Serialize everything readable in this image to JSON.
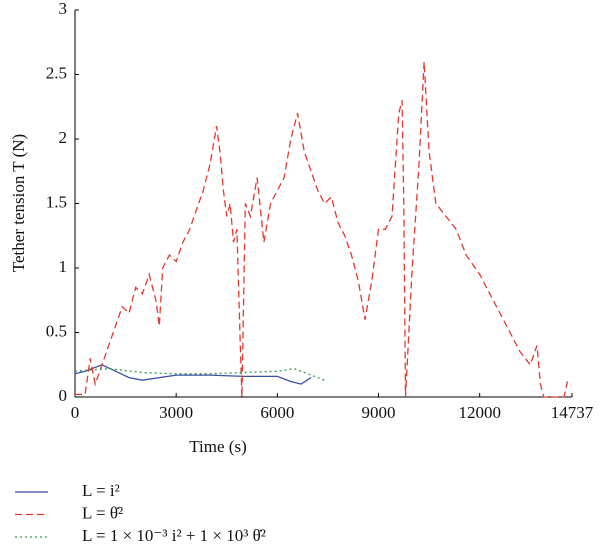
{
  "chart_data": {
    "type": "line",
    "xlabel": "Time (s)",
    "ylabel": "Tether tension T (N)",
    "xlim": [
      0,
      14737
    ],
    "xticks": [
      0,
      3000,
      6000,
      9000,
      12000,
      14737
    ],
    "ylim": [
      0,
      3
    ],
    "yticks": [
      0,
      0.5,
      1,
      1.5,
      2,
      2.5,
      3
    ],
    "series": [
      {
        "name": "L = i²",
        "color": "#3a4fa8",
        "style": "solid",
        "x": [
          0,
          300,
          800,
          1200,
          1600,
          2000,
          3000,
          4000,
          5000,
          6000,
          6400,
          6700,
          7000
        ],
        "values": [
          0.18,
          0.2,
          0.25,
          0.2,
          0.15,
          0.13,
          0.17,
          0.17,
          0.16,
          0.16,
          0.12,
          0.1,
          0.15
        ]
      },
      {
        "name": "L = θ̇²",
        "color": "#e8362c",
        "style": "dashed",
        "x": [
          0,
          300,
          450,
          600,
          800,
          1000,
          1200,
          1400,
          1600,
          1800,
          2000,
          2200,
          2400,
          2500,
          2600,
          2800,
          3000,
          3200,
          3400,
          3600,
          3800,
          4000,
          4200,
          4300,
          4400,
          4500,
          4600,
          4700,
          4800,
          4900,
          4950,
          5050,
          5200,
          5400,
          5600,
          5800,
          6000,
          6200,
          6400,
          6600,
          6800,
          7000,
          7200,
          7400,
          7600,
          7800,
          8000,
          8200,
          8400,
          8600,
          8800,
          9000,
          9200,
          9400,
          9600,
          9700,
          9750,
          9800,
          10000,
          10200,
          10350,
          10500,
          10700,
          11000,
          11300,
          11600,
          12000,
          12300,
          12600,
          12900,
          13200,
          13500,
          13700,
          13800,
          13900,
          14500,
          14600
        ],
        "values": [
          0.02,
          0.02,
          0.3,
          0.1,
          0.25,
          0.4,
          0.55,
          0.7,
          0.65,
          0.85,
          0.8,
          0.95,
          0.75,
          0.55,
          1.0,
          1.1,
          1.05,
          1.2,
          1.3,
          1.45,
          1.6,
          1.8,
          2.1,
          1.9,
          1.6,
          1.4,
          1.5,
          1.2,
          1.3,
          0.4,
          0.0,
          1.5,
          1.4,
          1.7,
          1.2,
          1.5,
          1.6,
          1.7,
          2.0,
          2.2,
          1.9,
          1.75,
          1.6,
          1.5,
          1.55,
          1.35,
          1.25,
          1.1,
          0.9,
          0.6,
          0.9,
          1.3,
          1.3,
          1.4,
          2.2,
          2.3,
          1.5,
          0.0,
          1.0,
          1.8,
          2.6,
          1.9,
          1.5,
          1.4,
          1.3,
          1.1,
          0.95,
          0.8,
          0.65,
          0.5,
          0.35,
          0.25,
          0.4,
          0.1,
          0.0,
          0.0,
          0.12
        ]
      },
      {
        "name": "L = 1 × 10⁻³ i² + 1 × 10³ θ̇²",
        "color": "#2e9a4a",
        "style": "dotted",
        "x": [
          0,
          500,
          1000,
          2000,
          3000,
          4000,
          5000,
          6000,
          6500,
          7000,
          7400
        ],
        "values": [
          0.2,
          0.21,
          0.22,
          0.19,
          0.18,
          0.18,
          0.19,
          0.2,
          0.22,
          0.17,
          0.13
        ]
      }
    ]
  }
}
